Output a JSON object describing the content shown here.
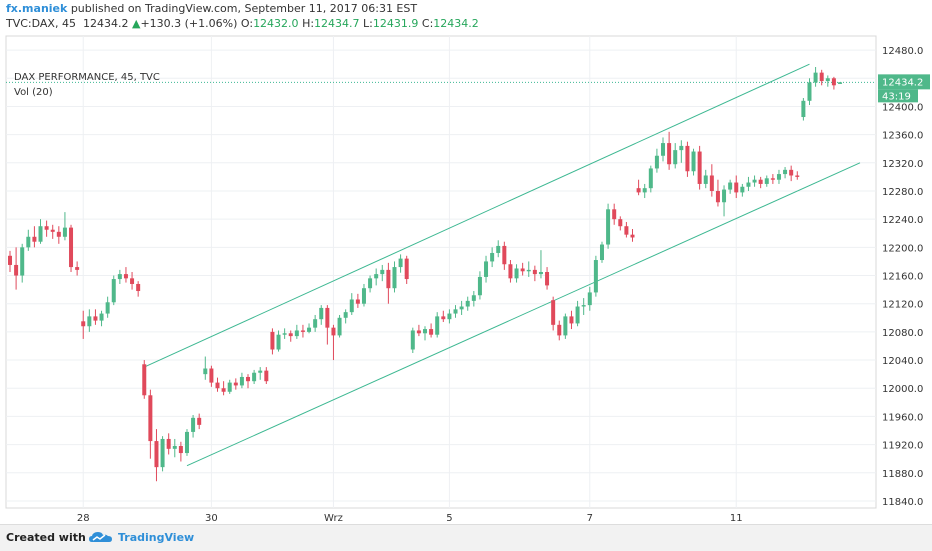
{
  "header": {
    "author": "fx.maniek",
    "published_text": "published on TradingView.com, September 11, 2017 06:31 EST",
    "symbol": "TVC:DAX, 45",
    "last": "12434.2",
    "change": "+130.3 (+1.06%)",
    "o_label": "O:",
    "o_value": "12432.0",
    "h_label": "H:",
    "h_value": "12434.7",
    "l_label": "L:",
    "l_value": "12431.9",
    "c_label": "C:",
    "c_value": "12434.2"
  },
  "legend": {
    "title": "DAX PERFORMANCE, 45, TVC",
    "indicator": "Vol (20)"
  },
  "price_tag": {
    "value": "12434.2",
    "countdown": "43:19"
  },
  "footer": {
    "created_with": "Created with",
    "brand": "TradingView"
  },
  "colors": {
    "up": "#4fb88a",
    "down": "#e0495b",
    "channel": "#3db892",
    "brand": "#2f8fd8"
  },
  "chart_data": {
    "type": "candlestick",
    "y_ticks": [
      12480.0,
      12440.0,
      12400.0,
      12360.0,
      12320.0,
      12280.0,
      12240.0,
      12200.0,
      12160.0,
      12120.0,
      12080.0,
      12040.0,
      12000.0,
      11960.0,
      11920.0,
      11880.0,
      11840.0
    ],
    "y_tick_labels": [
      "12480.0",
      "12440.0",
      "12400.0",
      "12360.0",
      "12320.0",
      "12280.0",
      "12240.0",
      "12200.0",
      "12160.0",
      "12120.0",
      "12080.0",
      "12040.0",
      "12000.0",
      "11960.0",
      "11920.0",
      "11880.0",
      "11840.0"
    ],
    "ylim": [
      11830,
      12500
    ],
    "x_ticks": [
      "28",
      "30",
      "Wrz",
      "5",
      "7",
      "11"
    ],
    "candles": [
      [
        12188,
        12195,
        12165,
        12175
      ],
      [
        12175,
        12200,
        12140,
        12160
      ],
      [
        12160,
        12205,
        12150,
        12200
      ],
      [
        12200,
        12225,
        12195,
        12215
      ],
      [
        12215,
        12230,
        12200,
        12208
      ],
      [
        12208,
        12240,
        12205,
        12230
      ],
      [
        12230,
        12238,
        12215,
        12225
      ],
      [
        12225,
        12232,
        12212,
        12222
      ],
      [
        12222,
        12230,
        12205,
        12215
      ],
      [
        12215,
        12250,
        12210,
        12228
      ],
      [
        12228,
        12232,
        12165,
        12172
      ],
      [
        12172,
        12180,
        12160,
        12168
      ],
      [
        12095,
        12110,
        12070,
        12088
      ],
      [
        12088,
        12112,
        12080,
        12102
      ],
      [
        12102,
        12112,
        12090,
        12096
      ],
      [
        12096,
        12110,
        12088,
        12106
      ],
      [
        12106,
        12130,
        12100,
        12122
      ],
      [
        12122,
        12160,
        12118,
        12155
      ],
      [
        12155,
        12168,
        12148,
        12162
      ],
      [
        12162,
        12172,
        12150,
        12156
      ],
      [
        12156,
        12165,
        12140,
        12148
      ],
      [
        12148,
        12152,
        12130,
        12138
      ],
      [
        12034,
        12040,
        11985,
        11990
      ],
      [
        11990,
        11998,
        11900,
        11925
      ],
      [
        11925,
        11942,
        11868,
        11888
      ],
      [
        11888,
        11932,
        11882,
        11928
      ],
      [
        11928,
        11936,
        11906,
        11914
      ],
      [
        11914,
        11928,
        11902,
        11918
      ],
      [
        11918,
        11924,
        11896,
        11908
      ],
      [
        11908,
        11942,
        11904,
        11938
      ],
      [
        11938,
        11962,
        11930,
        11958
      ],
      [
        11958,
        11964,
        11942,
        11948
      ],
      [
        12020,
        12045,
        12012,
        12028
      ],
      [
        12028,
        12032,
        12002,
        12008
      ],
      [
        12008,
        12015,
        11995,
        12000
      ],
      [
        12000,
        12010,
        11990,
        11995
      ],
      [
        11995,
        12012,
        11992,
        12008
      ],
      [
        12008,
        12014,
        11998,
        12004
      ],
      [
        12004,
        12022,
        12000,
        12016
      ],
      [
        12016,
        12020,
        12000,
        12010
      ],
      [
        12010,
        12026,
        12006,
        12022
      ],
      [
        12022,
        12030,
        12012,
        12025
      ],
      [
        12025,
        12030,
        12006,
        12010
      ],
      [
        12080,
        12085,
        12048,
        12055
      ],
      [
        12055,
        12082,
        12052,
        12076
      ],
      [
        12076,
        12085,
        12070,
        12078
      ],
      [
        12078,
        12082,
        12066,
        12074
      ],
      [
        12074,
        12090,
        12070,
        12082
      ],
      [
        12082,
        12090,
        12072,
        12080
      ],
      [
        12080,
        12092,
        12078,
        12086
      ],
      [
        12086,
        12104,
        12080,
        12098
      ],
      [
        12098,
        12118,
        12090,
        12114
      ],
      [
        12114,
        12118,
        12062,
        12086
      ],
      [
        12086,
        12090,
        12040,
        12075
      ],
      [
        12075,
        12104,
        12072,
        12100
      ],
      [
        12100,
        12112,
        12092,
        12108
      ],
      [
        12108,
        12135,
        12104,
        12126
      ],
      [
        12126,
        12134,
        12114,
        12120
      ],
      [
        12120,
        12148,
        12116,
        12142
      ],
      [
        12142,
        12160,
        12136,
        12156
      ],
      [
        12156,
        12170,
        12146,
        12162
      ],
      [
        12162,
        12175,
        12152,
        12168
      ],
      [
        12168,
        12178,
        12120,
        12142
      ],
      [
        12142,
        12180,
        12136,
        12172
      ],
      [
        12172,
        12190,
        12164,
        12184
      ],
      [
        12184,
        12188,
        12148,
        12155
      ],
      [
        12055,
        12086,
        12050,
        12082
      ],
      [
        12082,
        12090,
        12074,
        12078
      ],
      [
        12078,
        12088,
        12068,
        12084
      ],
      [
        12084,
        12092,
        12072,
        12076
      ],
      [
        12076,
        12108,
        12072,
        12102
      ],
      [
        12102,
        12110,
        12094,
        12098
      ],
      [
        12098,
        12112,
        12092,
        12106
      ],
      [
        12106,
        12118,
        12100,
        12112
      ],
      [
        12112,
        12124,
        12104,
        12116
      ],
      [
        12116,
        12130,
        12110,
        12124
      ],
      [
        12124,
        12138,
        12116,
        12132
      ],
      [
        12132,
        12166,
        12126,
        12158
      ],
      [
        12158,
        12188,
        12150,
        12180
      ],
      [
        12180,
        12200,
        12172,
        12192
      ],
      [
        12192,
        12210,
        12186,
        12202
      ],
      [
        12202,
        12208,
        12168,
        12176
      ],
      [
        12176,
        12182,
        12150,
        12156
      ],
      [
        12156,
        12176,
        12150,
        12170
      ],
      [
        12170,
        12178,
        12160,
        12166
      ],
      [
        12166,
        12180,
        12158,
        12168
      ],
      [
        12168,
        12174,
        12152,
        12162
      ],
      [
        12162,
        12196,
        12156,
        12165
      ],
      [
        12165,
        12172,
        12140,
        12146
      ],
      [
        12125,
        12130,
        12082,
        12090
      ],
      [
        12090,
        12096,
        12068,
        12075
      ],
      [
        12075,
        12106,
        12070,
        12102
      ],
      [
        12102,
        12110,
        12084,
        12092
      ],
      [
        12092,
        12124,
        12088,
        12116
      ],
      [
        12116,
        12128,
        12104,
        12118
      ],
      [
        12118,
        12144,
        12110,
        12136
      ],
      [
        12136,
        12188,
        12130,
        12182
      ],
      [
        12182,
        12208,
        12178,
        12204
      ],
      [
        12204,
        12262,
        12198,
        12254
      ],
      [
        12254,
        12262,
        12232,
        12240
      ],
      [
        12240,
        12244,
        12224,
        12230
      ],
      [
        12230,
        12236,
        12214,
        12218
      ],
      [
        12218,
        12226,
        12208,
        12214
      ],
      [
        12284,
        12296,
        12274,
        12278
      ],
      [
        12278,
        12290,
        12270,
        12284
      ],
      [
        12284,
        12316,
        12278,
        12312
      ],
      [
        12312,
        12340,
        12306,
        12330
      ],
      [
        12330,
        12356,
        12322,
        12348
      ],
      [
        12348,
        12364,
        12310,
        12318
      ],
      [
        12318,
        12348,
        12312,
        12338
      ],
      [
        12338,
        12352,
        12320,
        12344
      ],
      [
        12344,
        12350,
        12300,
        12308
      ],
      [
        12308,
        12340,
        12302,
        12336
      ],
      [
        12336,
        12344,
        12282,
        12290
      ],
      [
        12290,
        12310,
        12284,
        12302
      ],
      [
        12302,
        12318,
        12272,
        12280
      ],
      [
        12280,
        12296,
        12258,
        12264
      ],
      [
        12264,
        12288,
        12244,
        12282
      ],
      [
        12282,
        12296,
        12276,
        12292
      ],
      [
        12292,
        12302,
        12270,
        12278
      ],
      [
        12278,
        12290,
        12272,
        12286
      ],
      [
        12286,
        12300,
        12280,
        12292
      ],
      [
        12292,
        12302,
        12286,
        12296
      ],
      [
        12296,
        12300,
        12284,
        12290
      ],
      [
        12290,
        12302,
        12286,
        12298
      ],
      [
        12298,
        12304,
        12290,
        12296
      ],
      [
        12296,
        12310,
        12290,
        12304
      ],
      [
        12304,
        12314,
        12298,
        12310
      ],
      [
        12310,
        12316,
        12294,
        12302
      ],
      [
        12302,
        12308,
        12296,
        12300
      ],
      [
        12385,
        12412,
        12380,
        12408
      ],
      [
        12408,
        12440,
        12402,
        12434
      ],
      [
        12434,
        12456,
        12428,
        12448
      ],
      [
        12448,
        12452,
        12430,
        12436
      ],
      [
        12436,
        12444,
        12428,
        12440
      ],
      [
        12440,
        12442,
        12424,
        12430
      ],
      [
        12432.0,
        12434.7,
        12431.9,
        12434.2
      ]
    ],
    "channel": {
      "upper": [
        [
          "Aug 29",
          12030
        ],
        [
          "Sep 11",
          12460
        ]
      ],
      "lower": [
        [
          "Aug 29",
          11890
        ],
        [
          "Sep 11",
          12320
        ]
      ]
    },
    "last_price": 12434.2
  }
}
